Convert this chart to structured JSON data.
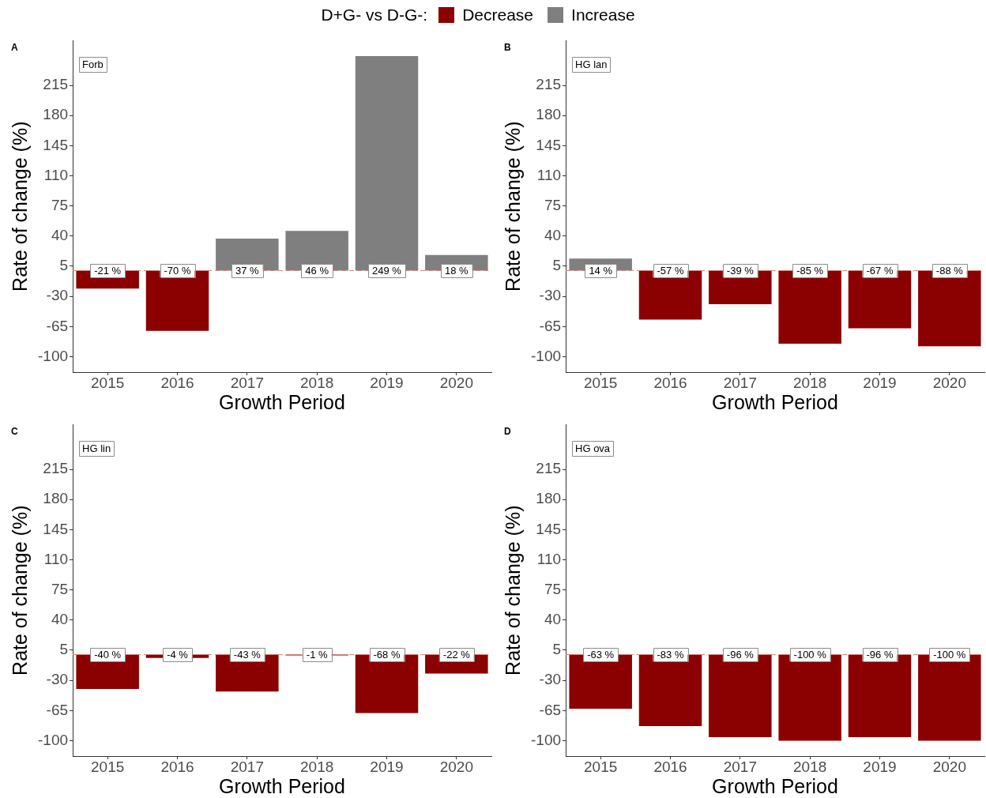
{
  "chart_data": [
    {
      "type": "bar",
      "title": "A",
      "legend": "top",
      "legend_title": "D+G- vs D-G-:",
      "xlabel": "Growth Period",
      "ylabel": "Rate of change (%)",
      "annotations": [
        "Forb"
      ],
      "categories": [
        "2015",
        "2016",
        "2017",
        "2018",
        "2019",
        "2020"
      ],
      "series": [
        {
          "name": "Decrease",
          "color": "#8b0000",
          "values": [
            -21,
            -70,
            null,
            null,
            null,
            null
          ],
          "value_labels": [
            "-21 %",
            "-70 %",
            null,
            null,
            null,
            null
          ]
        },
        {
          "name": "Increase",
          "color": "#7f7f7f",
          "values": [
            null,
            null,
            37,
            46,
            249,
            18
          ],
          "value_labels": [
            null,
            null,
            "37 %",
            "46 %",
            "249 %",
            "18 %"
          ]
        }
      ],
      "ylim": [
        -118,
        267
      ],
      "yticks": [
        -100,
        -65,
        -30,
        5,
        40,
        75,
        110,
        145,
        180,
        215
      ],
      "ref_lines": [
        {
          "axis": "y",
          "value": 0,
          "color": "#d98080",
          "line_style": "dashed"
        }
      ]
    },
    {
      "type": "bar",
      "title": "B",
      "xlabel": "Growth Period",
      "ylabel": "Rate of change (%)",
      "annotations": [
        "HG lan"
      ],
      "categories": [
        "2015",
        "2016",
        "2017",
        "2018",
        "2019",
        "2020"
      ],
      "series": [
        {
          "name": "Decrease",
          "color": "#8b0000",
          "values": [
            null,
            -57,
            -39,
            -85,
            -67,
            -88
          ],
          "value_labels": [
            null,
            "-57 %",
            "-39 %",
            "-85 %",
            "-67 %",
            "-88 %"
          ]
        },
        {
          "name": "Increase",
          "color": "#7f7f7f",
          "values": [
            14,
            null,
            null,
            null,
            null,
            null
          ],
          "value_labels": [
            "14 %",
            null,
            null,
            null,
            null,
            null
          ]
        }
      ],
      "ylim": [
        -118,
        267
      ],
      "yticks": [
        -100,
        -65,
        -30,
        5,
        40,
        75,
        110,
        145,
        180,
        215
      ],
      "ref_lines": [
        {
          "axis": "y",
          "value": 0,
          "color": "#d98080",
          "line_style": "dashed"
        }
      ]
    },
    {
      "type": "bar",
      "title": "C",
      "xlabel": "Growth Period",
      "ylabel": "Rate of change (%)",
      "annotations": [
        "HG lin"
      ],
      "categories": [
        "2015",
        "2016",
        "2017",
        "2018",
        "2019",
        "2020"
      ],
      "series": [
        {
          "name": "Decrease",
          "color": "#8b0000",
          "values": [
            -40,
            -4,
            -43,
            -1,
            -68,
            -22
          ],
          "value_labels": [
            "-40 %",
            "-4 %",
            "-43 %",
            "-1 %",
            "-68 %",
            "-22 %"
          ]
        }
      ],
      "ylim": [
        -118,
        267
      ],
      "yticks": [
        -100,
        -65,
        -30,
        5,
        40,
        75,
        110,
        145,
        180,
        215
      ],
      "ref_lines": [
        {
          "axis": "y",
          "value": 0,
          "color": "#d98080",
          "line_style": "dashed"
        }
      ]
    },
    {
      "type": "bar",
      "title": "D",
      "xlabel": "Growth Period",
      "ylabel": "Rate of change (%)",
      "annotations": [
        "HG ova"
      ],
      "categories": [
        "2015",
        "2016",
        "2017",
        "2018",
        "2019",
        "2020"
      ],
      "series": [
        {
          "name": "Decrease",
          "color": "#8b0000",
          "values": [
            -63,
            -83,
            -96,
            -100,
            -96,
            -100
          ],
          "value_labels": [
            "-63 %",
            "-83 %",
            "-96 %",
            "-100 %",
            "-96 %",
            "-100 %"
          ]
        }
      ],
      "ylim": [
        -118,
        267
      ],
      "yticks": [
        -100,
        -65,
        -30,
        5,
        40,
        75,
        110,
        145,
        180,
        215
      ],
      "ref_lines": [
        {
          "axis": "y",
          "value": 0,
          "color": "#d98080",
          "line_style": "dashed"
        }
      ]
    }
  ]
}
